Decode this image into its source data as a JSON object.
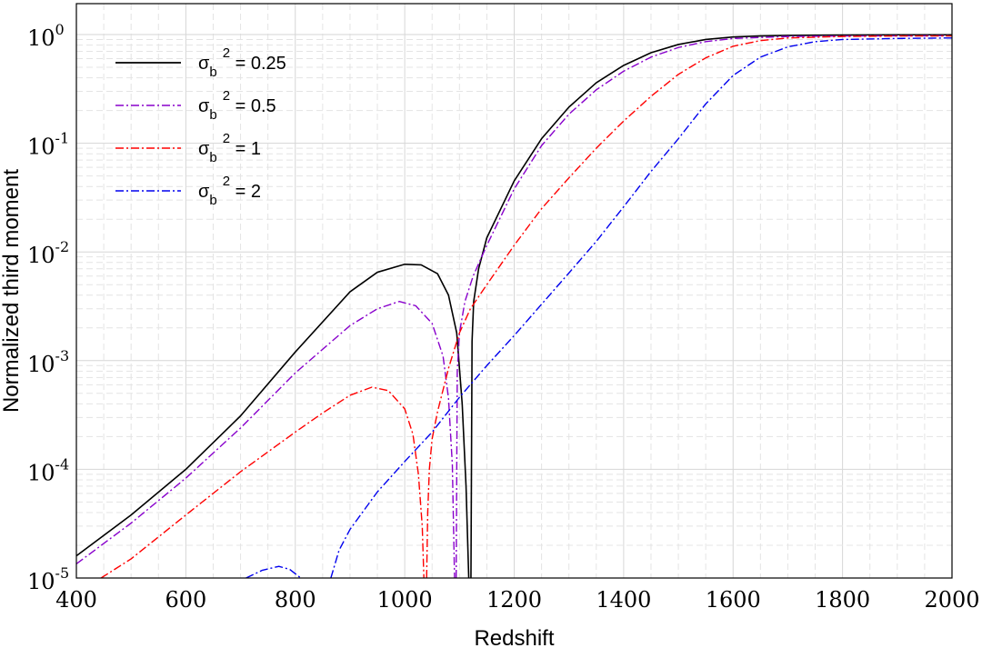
{
  "chart_data": {
    "type": "line",
    "xlabel": "Redshift",
    "ylabel": "Normalized third moment",
    "xlim": [
      400,
      2000
    ],
    "ylim": [
      1e-05,
      1
    ],
    "yscale": "log",
    "grid": true,
    "legend_position": "top-left",
    "x_ticks": [
      "400",
      "600",
      "800",
      "1000",
      "1200",
      "1400",
      "1600",
      "1800",
      "2000"
    ],
    "y_tick_mantissa": "10",
    "y_tick_exponents": [
      "-5",
      "-4",
      "-3",
      "-2",
      "-1",
      "0"
    ],
    "series": [
      {
        "name_base": "σ",
        "name_sub": "b",
        "name_sup": "2",
        "name_rest": " = 0.25",
        "color": "#000000",
        "dash": "solid",
        "points": [
          [
            400,
            1.6e-05
          ],
          [
            500,
            3.8e-05
          ],
          [
            600,
            0.0001
          ],
          [
            700,
            0.00031
          ],
          [
            800,
            0.0012
          ],
          [
            900,
            0.0043
          ],
          [
            950,
            0.0065
          ],
          [
            1000,
            0.0077
          ],
          [
            1030,
            0.0076
          ],
          [
            1060,
            0.0063
          ],
          [
            1080,
            0.004
          ],
          [
            1095,
            0.0018
          ],
          [
            1105,
            0.0004
          ],
          [
            1112,
            7e-05
          ],
          [
            1117,
            1e-05
          ]
        ]
      },
      {
        "name": "",
        "color": "#000000",
        "dash": "solid",
        "points": [
          [
            1121,
            1e-05
          ],
          [
            1123,
            0.0015
          ],
          [
            1126,
            0.0035
          ],
          [
            1135,
            0.007
          ],
          [
            1150,
            0.0135
          ],
          [
            1200,
            0.045
          ],
          [
            1250,
            0.11
          ],
          [
            1300,
            0.215
          ],
          [
            1350,
            0.36
          ],
          [
            1400,
            0.52
          ],
          [
            1450,
            0.68
          ],
          [
            1500,
            0.81
          ],
          [
            1550,
            0.9
          ],
          [
            1600,
            0.95
          ],
          [
            1650,
            0.97
          ],
          [
            1700,
            0.98
          ],
          [
            1800,
            0.99
          ],
          [
            1900,
            0.995
          ],
          [
            2000,
            0.995
          ]
        ]
      },
      {
        "name_base": "σ",
        "name_sub": "b",
        "name_sup": "2",
        "name_rest": " = 0.5",
        "color": "#8800cc",
        "dash": "dashdot",
        "points": [
          [
            400,
            1.35e-05
          ],
          [
            500,
            3.2e-05
          ],
          [
            600,
            8.3e-05
          ],
          [
            700,
            0.00024
          ],
          [
            800,
            0.00077
          ],
          [
            900,
            0.0021
          ],
          [
            950,
            0.003
          ],
          [
            990,
            0.0035
          ],
          [
            1020,
            0.0032
          ],
          [
            1050,
            0.0022
          ],
          [
            1070,
            0.0011
          ],
          [
            1080,
            0.00045
          ],
          [
            1087,
            0.00011
          ],
          [
            1091,
            1e-05
          ]
        ]
      },
      {
        "name": "",
        "color": "#8800cc",
        "dash": "dashdot",
        "points": [
          [
            1094,
            1e-05
          ],
          [
            1096,
            0.0008
          ],
          [
            1100,
            0.0018
          ],
          [
            1110,
            0.0035
          ],
          [
            1125,
            0.006
          ],
          [
            1150,
            0.0115
          ],
          [
            1200,
            0.038
          ],
          [
            1250,
            0.095
          ],
          [
            1300,
            0.185
          ],
          [
            1350,
            0.31
          ],
          [
            1400,
            0.46
          ],
          [
            1450,
            0.62
          ],
          [
            1500,
            0.76
          ],
          [
            1550,
            0.86
          ],
          [
            1600,
            0.92
          ],
          [
            1700,
            0.96
          ],
          [
            1800,
            0.97
          ],
          [
            2000,
            0.975
          ]
        ]
      },
      {
        "name_base": "σ",
        "name_sub": "b",
        "name_sup": "2",
        "name_rest": " = 1",
        "color": "#ff0000",
        "dash": "dashdot",
        "points": [
          [
            445,
            1e-05
          ],
          [
            500,
            1.5e-05
          ],
          [
            600,
            3.8e-05
          ],
          [
            700,
            9.5e-05
          ],
          [
            800,
            0.00022
          ],
          [
            850,
            0.00033
          ],
          [
            900,
            0.00048
          ],
          [
            940,
            0.00057
          ],
          [
            970,
            0.00053
          ],
          [
            1000,
            0.00036
          ],
          [
            1015,
            0.00021
          ],
          [
            1025,
            9e-05
          ],
          [
            1032,
            3e-05
          ],
          [
            1035,
            1e-05
          ]
        ]
      },
      {
        "name": "",
        "color": "#ff0000",
        "dash": "dashdot",
        "points": [
          [
            1040,
            1e-05
          ],
          [
            1042,
            4e-05
          ],
          [
            1045,
            0.0001
          ],
          [
            1050,
            0.00019
          ],
          [
            1060,
            0.00034
          ],
          [
            1080,
            0.00085
          ],
          [
            1100,
            0.0018
          ],
          [
            1120,
            0.003
          ],
          [
            1150,
            0.005
          ],
          [
            1200,
            0.0115
          ],
          [
            1250,
            0.025
          ],
          [
            1300,
            0.048
          ],
          [
            1350,
            0.09
          ],
          [
            1400,
            0.16
          ],
          [
            1450,
            0.27
          ],
          [
            1500,
            0.43
          ],
          [
            1550,
            0.61
          ],
          [
            1600,
            0.78
          ],
          [
            1650,
            0.88
          ],
          [
            1700,
            0.93
          ],
          [
            1800,
            0.96
          ],
          [
            1900,
            0.97
          ],
          [
            2000,
            0.97
          ]
        ]
      },
      {
        "name_base": "σ",
        "name_sub": "b",
        "name_sup": "2",
        "name_rest": " = 2",
        "color": "#0000ee",
        "dash": "dashdot",
        "points": [
          [
            710,
            1e-05
          ],
          [
            740,
            1.18e-05
          ],
          [
            770,
            1.28e-05
          ],
          [
            790,
            1.2e-05
          ],
          [
            810,
            1e-05
          ]
        ]
      },
      {
        "name": "",
        "color": "#0000ee",
        "dash": "dashdot",
        "points": [
          [
            865,
            1e-05
          ],
          [
            880,
            1.8e-05
          ],
          [
            900,
            2.8e-05
          ],
          [
            950,
            6.2e-05
          ],
          [
            1000,
            0.000118
          ],
          [
            1050,
            0.00022
          ],
          [
            1100,
            0.00046
          ],
          [
            1150,
            0.0009
          ],
          [
            1200,
            0.0017
          ],
          [
            1250,
            0.0033
          ],
          [
            1300,
            0.0064
          ],
          [
            1350,
            0.0125
          ],
          [
            1400,
            0.026
          ],
          [
            1450,
            0.055
          ],
          [
            1500,
            0.11
          ],
          [
            1550,
            0.23
          ],
          [
            1600,
            0.42
          ],
          [
            1650,
            0.62
          ],
          [
            1700,
            0.77
          ],
          [
            1750,
            0.86
          ],
          [
            1800,
            0.9
          ],
          [
            1900,
            0.92
          ],
          [
            2000,
            0.93
          ]
        ]
      }
    ]
  }
}
